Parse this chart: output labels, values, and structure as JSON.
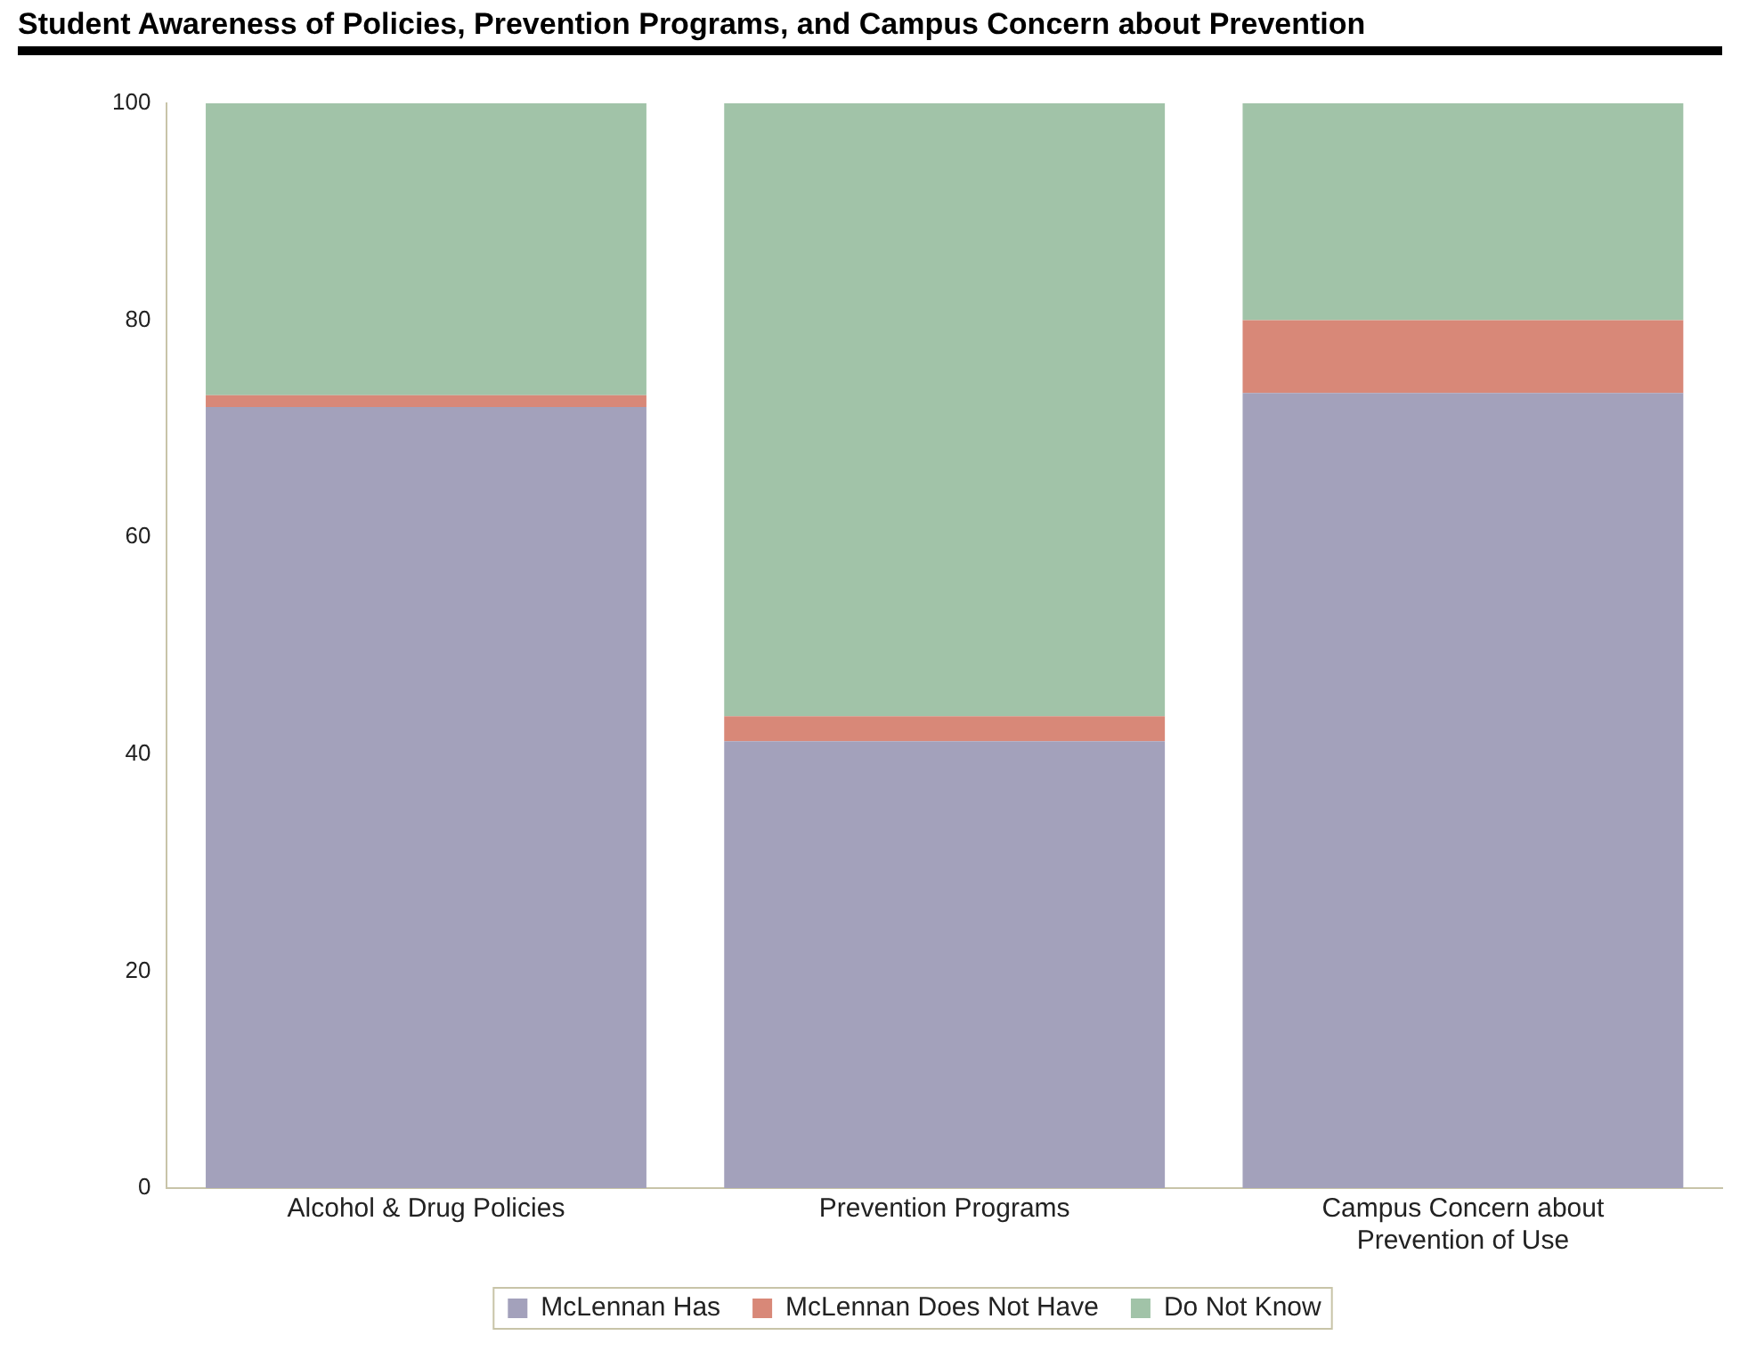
{
  "chart_data": {
    "type": "bar",
    "title": "Student Awareness of Policies, Prevention Programs, and Campus Concern about Prevention",
    "categories": [
      "Alcohol & Drug Policies",
      "Prevention Programs",
      "Campus Concern about Prevention of Use"
    ],
    "stacked": true,
    "series": [
      {
        "name": "McLennan Has",
        "color": "#a3a1bb",
        "values": [
          72,
          41.2,
          73.3
        ]
      },
      {
        "name": "McLennan Does Not Have",
        "color": "#d88878",
        "values": [
          1.1,
          2.3,
          6.7
        ]
      },
      {
        "name": "Do Not Know",
        "color": "#a1c3a8",
        "values": [
          26.9,
          56.5,
          20
        ]
      }
    ],
    "ylim": [
      0,
      100
    ],
    "yticks": [
      0,
      20,
      40,
      60,
      80,
      100
    ],
    "grid": false,
    "legend": "bottom"
  }
}
